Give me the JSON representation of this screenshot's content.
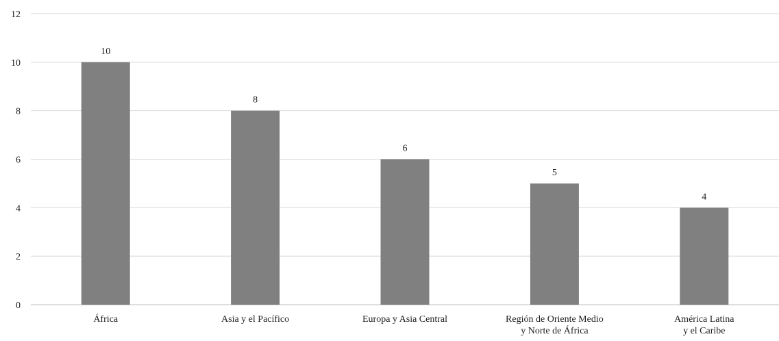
{
  "chart_data": {
    "type": "bar",
    "title": "",
    "xlabel": "",
    "ylabel": "",
    "categories": [
      [
        "África"
      ],
      [
        "Asia y el Pacífico"
      ],
      [
        "Europa y Asia Central"
      ],
      [
        "Región de Oriente Medio",
        "y Norte de África"
      ],
      [
        "América Latina",
        "y el Caribe"
      ]
    ],
    "values": [
      10,
      8,
      6,
      5,
      4
    ],
    "data_labels": [
      "10",
      "8",
      "6",
      "5",
      "4"
    ],
    "ylim": [
      0,
      12
    ],
    "yticks": [
      0,
      2,
      4,
      6,
      8,
      10,
      12
    ],
    "grid": true,
    "legend": "none",
    "colors": {
      "bar": "#808080",
      "grid": "#d9d9d9",
      "axis": "#bfbfbf",
      "text": "#222222"
    }
  }
}
